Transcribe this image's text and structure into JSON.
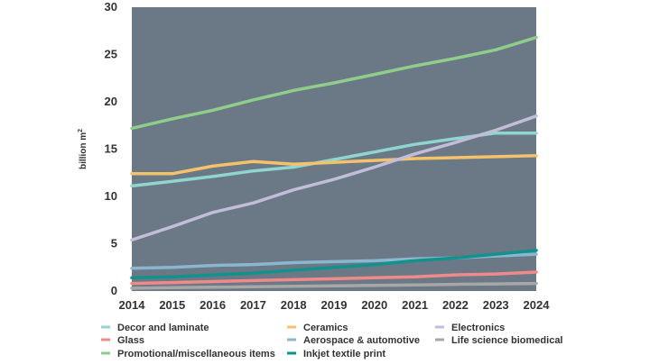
{
  "chart_data": {
    "type": "line",
    "title": "",
    "xlabel": "",
    "ylabel": "billion m",
    "ylabel_superscript": "2",
    "x": [
      2014,
      2015,
      2016,
      2017,
      2018,
      2019,
      2020,
      2021,
      2022,
      2023,
      2024
    ],
    "ylim": [
      0,
      30
    ],
    "yticks": [
      0,
      5,
      10,
      15,
      20,
      25,
      30
    ],
    "grid": false,
    "legend_position": "bottom",
    "background": "#6b7885",
    "series": [
      {
        "name": "Decor and laminate",
        "color": "#8fd6d0",
        "values": [
          11.1,
          11.6,
          12.1,
          12.7,
          13.1,
          13.9,
          14.7,
          15.5,
          16.1,
          16.7,
          16.7
        ]
      },
      {
        "name": "Glass",
        "color": "#f08a8a",
        "values": [
          0.8,
          0.9,
          1.0,
          1.1,
          1.2,
          1.3,
          1.4,
          1.5,
          1.7,
          1.8,
          2.0
        ]
      },
      {
        "name": "Promotional/miscellaneous items",
        "color": "#8fce8a",
        "values": [
          17.2,
          18.2,
          19.1,
          20.2,
          21.2,
          22.0,
          22.9,
          23.8,
          24.6,
          25.5,
          26.8
        ]
      },
      {
        "name": "Ceramics",
        "color": "#f4c26a",
        "values": [
          12.4,
          12.4,
          13.2,
          13.7,
          13.4,
          13.6,
          13.8,
          14.0,
          14.1,
          14.2,
          14.3
        ]
      },
      {
        "name": "Aerospace & automotive",
        "color": "#8ab6cf",
        "values": [
          2.4,
          2.5,
          2.7,
          2.8,
          3.0,
          3.1,
          3.2,
          3.4,
          3.5,
          3.7,
          3.9
        ]
      },
      {
        "name": "Inkjet textile print",
        "color": "#12928c",
        "values": [
          1.4,
          1.5,
          1.7,
          1.9,
          2.2,
          2.5,
          2.8,
          3.2,
          3.5,
          3.9,
          4.3
        ]
      },
      {
        "name": "Electronics",
        "color": "#c2bdd8",
        "values": [
          5.4,
          6.8,
          8.3,
          9.3,
          10.7,
          11.8,
          13.1,
          14.5,
          15.7,
          17.0,
          18.5
        ]
      },
      {
        "name": "Life science biomedical",
        "color": "#a7a7a7",
        "values": [
          0.3,
          0.35,
          0.4,
          0.45,
          0.5,
          0.55,
          0.6,
          0.65,
          0.7,
          0.75,
          0.8
        ]
      }
    ]
  }
}
